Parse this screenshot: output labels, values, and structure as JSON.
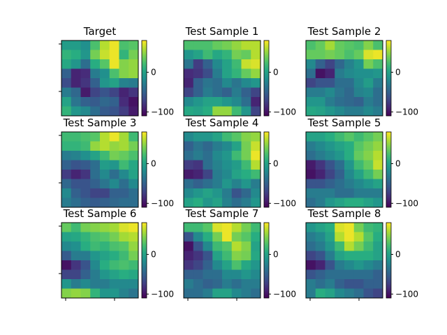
{
  "chart_data": {
    "type": "heatmap",
    "colormap": "viridis",
    "grid": false,
    "colorbar_ticks": [
      0,
      -100
    ],
    "colorbar_tick_labels": [
      "0",
      "−100"
    ],
    "vmin": -110,
    "vmax": 80,
    "panels": [
      {
        "title": "Target",
        "values": [
          [
            -5,
            -5,
            -15,
            25,
            60,
            75,
            25,
            30
          ],
          [
            15,
            10,
            -10,
            40,
            65,
            75,
            15,
            40
          ],
          [
            5,
            -10,
            -40,
            10,
            30,
            75,
            45,
            50
          ],
          [
            -50,
            -90,
            -85,
            -30,
            -15,
            25,
            45,
            50
          ],
          [
            -65,
            -90,
            -80,
            -50,
            -10,
            0,
            -25,
            -30
          ],
          [
            -30,
            -45,
            -95,
            -70,
            -60,
            -70,
            -90,
            -80
          ],
          [
            0,
            -35,
            -50,
            -55,
            -45,
            -50,
            -85,
            -100
          ],
          [
            15,
            -10,
            -20,
            -40,
            -55,
            -60,
            -75,
            -95
          ]
        ]
      },
      {
        "title": "Test Sample 1",
        "values": [
          [
            25,
            25,
            25,
            35,
            40,
            50,
            60,
            60
          ],
          [
            -10,
            0,
            20,
            5,
            15,
            40,
            35,
            60
          ],
          [
            -35,
            -75,
            -50,
            -20,
            0,
            20,
            65,
            70
          ],
          [
            -85,
            -80,
            -65,
            -30,
            0,
            15,
            35,
            50
          ],
          [
            -90,
            -50,
            -35,
            -40,
            -20,
            -35,
            -20,
            -10
          ],
          [
            -70,
            -50,
            -30,
            -40,
            -50,
            -30,
            -50,
            -70
          ],
          [
            -20,
            -10,
            0,
            0,
            -10,
            -20,
            -40,
            -90
          ],
          [
            5,
            0,
            10,
            50,
            50,
            20,
            -10,
            -70
          ]
        ]
      },
      {
        "title": "Test Sample 2",
        "values": [
          [
            25,
            35,
            55,
            35,
            30,
            25,
            45,
            25
          ],
          [
            35,
            35,
            40,
            35,
            25,
            35,
            70,
            75
          ],
          [
            -20,
            -50,
            -70,
            -45,
            -25,
            -10,
            40,
            25
          ],
          [
            -40,
            -100,
            -90,
            -30,
            -20,
            -15,
            -15,
            -10
          ],
          [
            -70,
            -60,
            -60,
            -40,
            -40,
            -20,
            -5,
            -30
          ],
          [
            -30,
            -30,
            -20,
            -35,
            -45,
            -25,
            -20,
            -40
          ],
          [
            -10,
            -10,
            -30,
            -40,
            -45,
            -50,
            -30,
            -40
          ],
          [
            5,
            0,
            -10,
            -20,
            -30,
            -30,
            -20,
            -30
          ]
        ]
      },
      {
        "title": "Test Sample 3",
        "values": [
          [
            20,
            20,
            25,
            30,
            60,
            75,
            55,
            20
          ],
          [
            15,
            15,
            20,
            50,
            60,
            50,
            55,
            40
          ],
          [
            -30,
            -25,
            -15,
            0,
            20,
            40,
            35,
            25
          ],
          [
            -50,
            -60,
            -55,
            -40,
            -5,
            -10,
            20,
            5
          ],
          [
            -75,
            -90,
            -80,
            -40,
            -20,
            -40,
            -20,
            0
          ],
          [
            -45,
            -60,
            -60,
            -50,
            -35,
            -20,
            -40,
            -20
          ],
          [
            -20,
            -50,
            -60,
            -70,
            -70,
            -50,
            -50,
            -40
          ],
          [
            -30,
            -40,
            -50,
            -55,
            -50,
            -45,
            -40,
            -40
          ]
        ]
      },
      {
        "title": "Test Sample 4",
        "values": [
          [
            -20,
            -10,
            -10,
            0,
            20,
            30,
            45,
            50
          ],
          [
            -50,
            -35,
            -45,
            -30,
            -20,
            0,
            40,
            65
          ],
          [
            -40,
            -30,
            -40,
            -20,
            -10,
            20,
            40,
            75
          ],
          [
            -75,
            -80,
            -40,
            -25,
            -15,
            -5,
            20,
            60
          ],
          [
            -95,
            -90,
            -70,
            -30,
            -20,
            0,
            10,
            20
          ],
          [
            -40,
            -50,
            -40,
            -30,
            -10,
            -25,
            -10,
            -30
          ],
          [
            -20,
            -10,
            0,
            -10,
            -30,
            -60,
            -45,
            -20
          ],
          [
            0,
            10,
            -10,
            0,
            -25,
            -40,
            -30,
            -10
          ]
        ]
      },
      {
        "title": "Test Sample 5",
        "values": [
          [
            0,
            0,
            10,
            20,
            30,
            20,
            30,
            40
          ],
          [
            -30,
            -20,
            -10,
            0,
            10,
            30,
            40,
            50
          ],
          [
            -40,
            -30,
            -20,
            -10,
            10,
            35,
            45,
            60
          ],
          [
            -95,
            -80,
            -60,
            -40,
            -10,
            20,
            35,
            65
          ],
          [
            -100,
            -90,
            -70,
            -50,
            -20,
            0,
            20,
            40
          ],
          [
            -60,
            -60,
            -50,
            -40,
            -30,
            -20,
            -10,
            0
          ],
          [
            -30,
            -30,
            -30,
            -40,
            -40,
            -30,
            -30,
            -30
          ],
          [
            -40,
            -30,
            -10,
            0,
            10,
            10,
            0,
            -10
          ]
        ]
      },
      {
        "title": "Test Sample 6",
        "values": [
          [
            35,
            20,
            40,
            45,
            50,
            55,
            70,
            75
          ],
          [
            0,
            5,
            15,
            25,
            30,
            40,
            55,
            60
          ],
          [
            -20,
            -15,
            10,
            20,
            15,
            25,
            30,
            50
          ],
          [
            -55,
            -30,
            -30,
            -10,
            0,
            10,
            20,
            40
          ],
          [
            -100,
            -80,
            -60,
            -20,
            10,
            20,
            25,
            20
          ],
          [
            -70,
            -70,
            -50,
            -30,
            -10,
            0,
            10,
            5
          ],
          [
            -10,
            -30,
            -20,
            -30,
            -30,
            -20,
            -20,
            -20
          ],
          [
            45,
            50,
            45,
            15,
            -10,
            -10,
            -25,
            -35
          ]
        ]
      },
      {
        "title": "Test Sample 7",
        "values": [
          [
            20,
            20,
            30,
            70,
            75,
            60,
            40,
            20
          ],
          [
            -60,
            -20,
            10,
            40,
            75,
            40,
            30,
            10
          ],
          [
            -100,
            -60,
            -20,
            20,
            30,
            60,
            45,
            0
          ],
          [
            -90,
            -80,
            -60,
            0,
            20,
            45,
            40,
            5
          ],
          [
            -80,
            -70,
            -50,
            -20,
            0,
            25,
            5,
            -10
          ],
          [
            -50,
            -50,
            -40,
            -40,
            -20,
            -20,
            -10,
            -20
          ],
          [
            -30,
            -40,
            -50,
            -45,
            -30,
            -40,
            -30,
            -30
          ],
          [
            -40,
            -40,
            -30,
            0,
            0,
            -20,
            -30,
            -40
          ]
        ]
      },
      {
        "title": "Test Sample 8",
        "values": [
          [
            -10,
            0,
            10,
            70,
            75,
            40,
            20,
            15
          ],
          [
            -30,
            -20,
            0,
            60,
            75,
            60,
            30,
            10
          ],
          [
            -40,
            -30,
            -10,
            20,
            60,
            40,
            20,
            0
          ],
          [
            -70,
            -60,
            -30,
            0,
            10,
            10,
            10,
            0
          ],
          [
            -100,
            -90,
            -60,
            -30,
            -20,
            -10,
            -20,
            -30
          ],
          [
            -60,
            -50,
            -40,
            -40,
            -40,
            -40,
            -40,
            -50
          ],
          [
            -30,
            -40,
            -30,
            -50,
            -60,
            -60,
            -50,
            -50
          ],
          [
            -30,
            10,
            0,
            -20,
            -30,
            -40,
            -60,
            -70
          ]
        ]
      }
    ]
  }
}
